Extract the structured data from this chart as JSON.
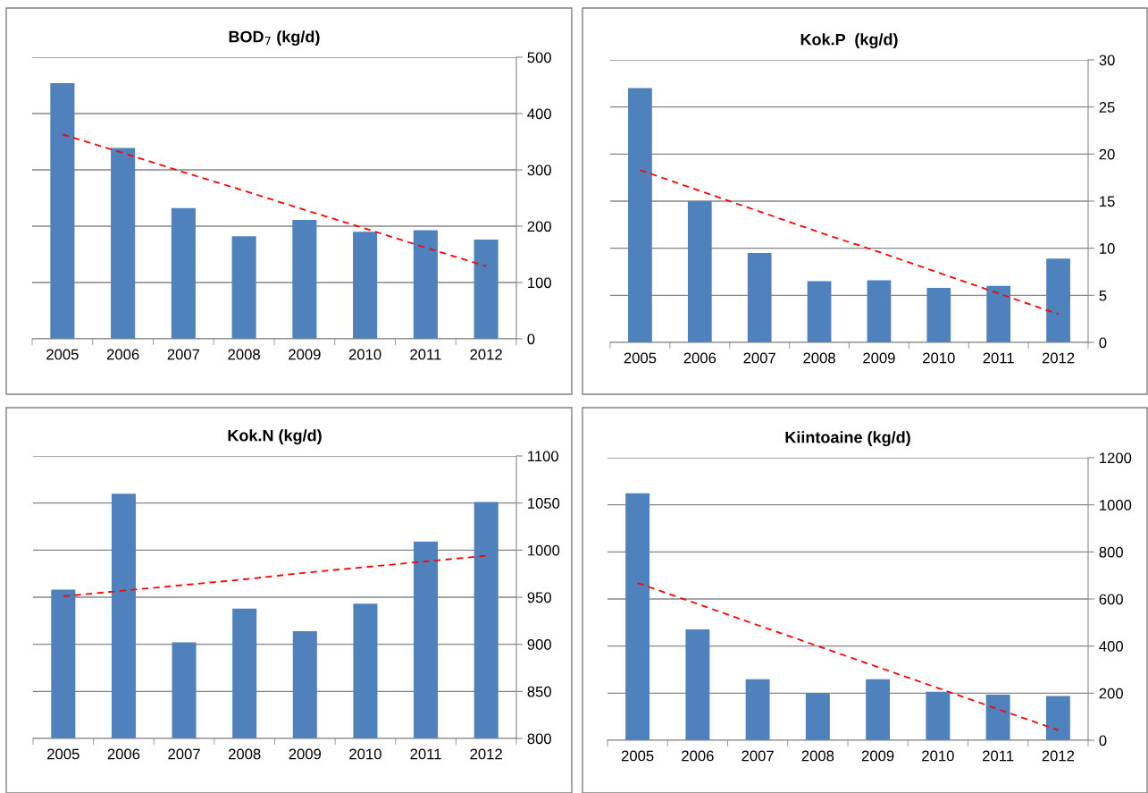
{
  "chart_data": [
    {
      "type": "bar",
      "title": "BOD$_{7}$ (kg/d)",
      "categories": [
        "2005",
        "2006",
        "2007",
        "2008",
        "2009",
        "2010",
        "2011",
        "2012"
      ],
      "ylim": [
        0,
        500
      ],
      "yticks": [
        0,
        100,
        200,
        300,
        400,
        500
      ],
      "grid": "y",
      "series": [
        {
          "color": "#4f81bd",
          "values": [
            454,
            339,
            232,
            182,
            211,
            190,
            193,
            176
          ]
        },
        {
          "type": "line",
          "color": "#ff0000",
          "line_style": "dashed",
          "values": [
            363,
            330,
            296,
            263,
            229,
            196,
            162,
            129
          ]
        }
      ]
    },
    {
      "type": "bar",
      "title": "Kok.P  (kg/d)",
      "categories": [
        "2005",
        "2006",
        "2007",
        "2008",
        "2009",
        "2010",
        "2011",
        "2012"
      ],
      "ylim": [
        0,
        30
      ],
      "yticks": [
        0,
        5,
        10,
        15,
        20,
        25,
        30
      ],
      "grid": "y",
      "series": [
        {
          "color": "#4f81bd",
          "values": [
            27.0,
            15.0,
            9.5,
            6.5,
            6.6,
            5.8,
            6.0,
            8.9
          ]
        },
        {
          "type": "line",
          "color": "#ff0000",
          "line_style": "dashed",
          "values": [
            18.3,
            16.1,
            13.9,
            11.7,
            9.6,
            7.4,
            5.2,
            3.0
          ]
        }
      ]
    },
    {
      "type": "bar",
      "title": "Kok.N (kg/d)",
      "categories": [
        "2005",
        "2006",
        "2007",
        "2008",
        "2009",
        "2010",
        "2011",
        "2012"
      ],
      "ylim": [
        800,
        1100
      ],
      "yticks": [
        800,
        850,
        900,
        950,
        1000,
        1050,
        1100
      ],
      "grid": "y",
      "series": [
        {
          "color": "#4f81bd",
          "values": [
            958,
            1060,
            902,
            938,
            914,
            943,
            1009,
            1051
          ]
        },
        {
          "type": "line",
          "color": "#ff0000",
          "line_style": "dashed",
          "values": [
            951,
            957,
            963,
            969,
            976,
            982,
            988,
            994
          ]
        }
      ]
    },
    {
      "type": "bar",
      "title": "Kiintoaine (kg/d)",
      "categories": [
        "2005",
        "2006",
        "2007",
        "2008",
        "2009",
        "2010",
        "2011",
        "2012"
      ],
      "ylim": [
        0,
        1200
      ],
      "yticks": [
        0,
        200,
        400,
        600,
        800,
        1000,
        1200
      ],
      "grid": "y",
      "series": [
        {
          "color": "#4f81bd",
          "values": [
            1049,
            471,
            259,
            200,
            259,
            206,
            194,
            188
          ]
        },
        {
          "type": "line",
          "color": "#ff0000",
          "line_style": "dashed",
          "values": [
            668,
            579,
            489,
            400,
            311,
            222,
            132,
            43
          ]
        }
      ]
    }
  ]
}
